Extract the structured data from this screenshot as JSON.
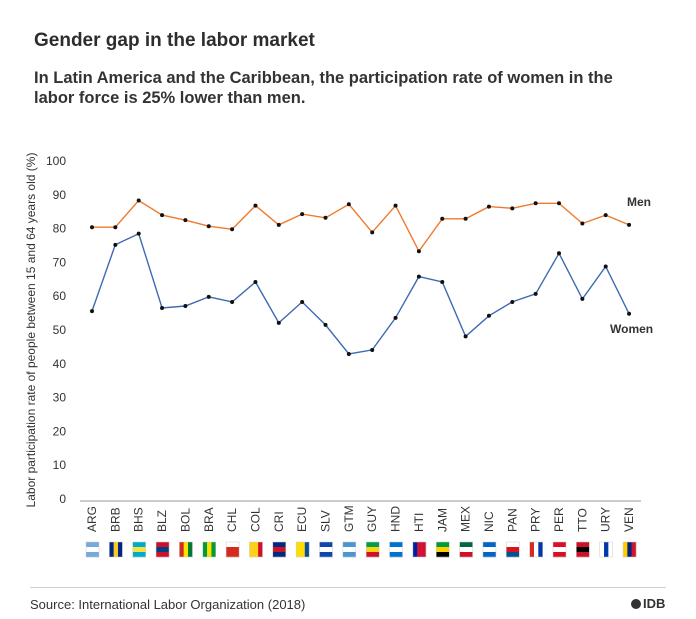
{
  "header": {
    "title": "Gender gap in the labor market",
    "subtitle": "In Latin America and the Caribbean, the participation rate of women in the labor force is 25% lower than men."
  },
  "footer": {
    "source": "Source: International Labor Organization (2018)",
    "logo_text": "IDB"
  },
  "colors": {
    "men": "#f07a2b",
    "women": "#3d6bb3",
    "axis": "#666666",
    "text": "#2b2b2b"
  },
  "chart_data": {
    "type": "line",
    "title": "Gender gap in the labor market",
    "xlabel": "",
    "ylabel": "Labor participation rate of people between 15 and 64 years old (%)",
    "ylim": [
      0,
      100
    ],
    "yticks": [
      0,
      10,
      20,
      30,
      40,
      50,
      60,
      70,
      80,
      90,
      100
    ],
    "grid": false,
    "legend": "inline labels at right end of each line",
    "categories": [
      "ARG",
      "BRB",
      "BHS",
      "BLZ",
      "BOL",
      "BRA",
      "CHL",
      "COL",
      "CRI",
      "ECU",
      "SLV",
      "GTM",
      "GUY",
      "HND",
      "HTI",
      "JAM",
      "MEX",
      "NIC",
      "PAN",
      "PRY",
      "PER",
      "TTO",
      "URY",
      "VEN"
    ],
    "series": [
      {
        "name": "Men",
        "values": [
          80.4,
          80.4,
          88.3,
          84.0,
          82.5,
          80.7,
          79.8,
          86.8,
          81.1,
          84.3,
          83.2,
          87.2,
          78.9,
          86.8,
          73.3,
          82.9,
          82.9,
          86.5,
          86.0,
          87.5,
          87.5,
          81.5,
          84.0,
          81.1
        ]
      },
      {
        "name": "Women",
        "values": [
          55.6,
          75.2,
          78.5,
          56.5,
          57.1,
          59.8,
          58.3,
          64.2,
          52.1,
          58.3,
          51.5,
          42.9,
          44.1,
          53.6,
          65.8,
          64.2,
          48.1,
          54.2,
          58.3,
          60.7,
          72.7,
          59.2,
          68.8,
          54.8
        ]
      }
    ],
    "flags": [
      {
        "code": "ARG",
        "colors": [
          "#75aadb",
          "#ffffff",
          "#75aadb"
        ],
        "orient": "h"
      },
      {
        "code": "BRB",
        "colors": [
          "#00267f",
          "#ffc726",
          "#00267f"
        ],
        "orient": "v"
      },
      {
        "code": "BHS",
        "colors": [
          "#00abc9",
          "#fae042",
          "#00abc9"
        ],
        "orient": "h"
      },
      {
        "code": "BLZ",
        "colors": [
          "#ce1126",
          "#003f87",
          "#ce1126"
        ],
        "orient": "h"
      },
      {
        "code": "BOL",
        "colors": [
          "#d52b1e",
          "#f9e300",
          "#007934"
        ],
        "orient": "v"
      },
      {
        "code": "BRA",
        "colors": [
          "#009c3b",
          "#ffdf00",
          "#009c3b"
        ],
        "orient": "v"
      },
      {
        "code": "CHL",
        "colors": [
          "#ffffff",
          "#d52b1e",
          "#d52b1e"
        ],
        "orient": "h"
      },
      {
        "code": "COL",
        "colors": [
          "#fcd116",
          "#fcd116",
          "#ce1126"
        ],
        "orient": "v"
      },
      {
        "code": "CRI",
        "colors": [
          "#002b7f",
          "#ce1126",
          "#002b7f"
        ],
        "orient": "h"
      },
      {
        "code": "ECU",
        "colors": [
          "#ffdd00",
          "#ffdd00",
          "#034ea2"
        ],
        "orient": "v"
      },
      {
        "code": "SLV",
        "colors": [
          "#0f47af",
          "#ffffff",
          "#0f47af"
        ],
        "orient": "h"
      },
      {
        "code": "GTM",
        "colors": [
          "#4997d0",
          "#ffffff",
          "#4997d0"
        ],
        "orient": "h"
      },
      {
        "code": "GUY",
        "colors": [
          "#009e49",
          "#fcd116",
          "#ce1126"
        ],
        "orient": "h"
      },
      {
        "code": "HND",
        "colors": [
          "#0073cf",
          "#ffffff",
          "#0073cf"
        ],
        "orient": "h"
      },
      {
        "code": "HTI",
        "colors": [
          "#00209f",
          "#d21034",
          "#d21034"
        ],
        "orient": "v"
      },
      {
        "code": "JAM",
        "colors": [
          "#009b3a",
          "#fed100",
          "#000000"
        ],
        "orient": "h"
      },
      {
        "code": "MEX",
        "colors": [
          "#006847",
          "#ffffff",
          "#ce1126"
        ],
        "orient": "h"
      },
      {
        "code": "NIC",
        "colors": [
          "#0067c6",
          "#ffffff",
          "#0067c6"
        ],
        "orient": "h"
      },
      {
        "code": "PAN",
        "colors": [
          "#ffffff",
          "#da121a",
          "#005293"
        ],
        "orient": "h"
      },
      {
        "code": "PRY",
        "colors": [
          "#d52b1e",
          "#ffffff",
          "#0038a8"
        ],
        "orient": "v"
      },
      {
        "code": "PER",
        "colors": [
          "#d91023",
          "#ffffff",
          "#d91023"
        ],
        "orient": "h"
      },
      {
        "code": "TTO",
        "colors": [
          "#ce1126",
          "#000000",
          "#ce1126"
        ],
        "orient": "h"
      },
      {
        "code": "URY",
        "colors": [
          "#ffffff",
          "#0038a8",
          "#ffffff"
        ],
        "orient": "v"
      },
      {
        "code": "VEN",
        "colors": [
          "#ffcc00",
          "#00247d",
          "#cf142b"
        ],
        "orient": "v"
      }
    ]
  }
}
